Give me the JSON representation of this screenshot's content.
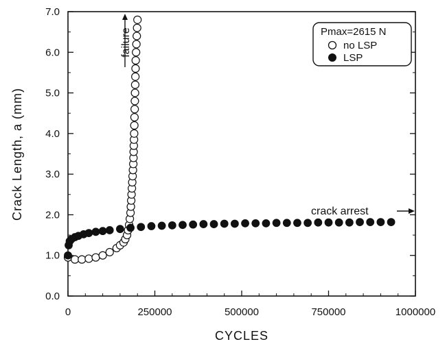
{
  "chart_data": {
    "type": "scatter",
    "xlabel": "CYCLES",
    "ylabel": "Crack Length, a (mm)",
    "xlim": [
      0,
      1000000
    ],
    "ylim": [
      0,
      7
    ],
    "x_ticks": [
      0,
      250000,
      500000,
      750000,
      1000000
    ],
    "x_tick_labels": [
      "0",
      "250000",
      "500000",
      "750000",
      "1000000"
    ],
    "y_ticks": [
      0,
      1,
      2,
      3,
      4,
      5,
      6,
      7
    ],
    "y_tick_labels": [
      "0.0",
      "1.0",
      "2.0",
      "3.0",
      "4.0",
      "5.0",
      "6.0",
      "7.0"
    ],
    "grid": false,
    "legend": {
      "placement": "top-right",
      "title": "Pmax=2615 N",
      "entries": [
        "no LSP",
        "LSP"
      ]
    },
    "annotations": [
      {
        "text": "failure",
        "x": 180000,
        "y": 6.6,
        "arrow": "up"
      },
      {
        "text": "crack arrest",
        "x": 830000,
        "y": 2.05,
        "arrow": "right"
      }
    ],
    "series": [
      {
        "name": "no LSP",
        "marker": "open-circle",
        "x": [
          0,
          20000,
          40000,
          60000,
          80000,
          100000,
          120000,
          140000,
          150000,
          160000,
          165000,
          170000,
          173000,
          176000,
          178000,
          180000,
          181000,
          182000,
          183000,
          184000,
          185000,
          186000,
          187000,
          188000,
          188500,
          189000,
          189500,
          190000,
          190500,
          191000,
          191500,
          192000,
          192500,
          193000,
          193500,
          194000,
          194500,
          195000,
          196000,
          197000,
          198000,
          199000,
          200000
        ],
        "y": [
          0.95,
          0.9,
          0.9,
          0.92,
          0.95,
          1.0,
          1.08,
          1.18,
          1.25,
          1.32,
          1.4,
          1.5,
          1.62,
          1.75,
          1.9,
          2.05,
          2.2,
          2.35,
          2.5,
          2.65,
          2.8,
          2.95,
          3.1,
          3.25,
          3.4,
          3.55,
          3.7,
          3.85,
          4.0,
          4.2,
          4.4,
          4.6,
          4.8,
          5.0,
          5.2,
          5.4,
          5.6,
          5.8,
          6.0,
          6.2,
          6.4,
          6.6,
          6.8
        ]
      },
      {
        "name": "LSP",
        "marker": "filled-circle",
        "x": [
          0,
          2000,
          5000,
          10000,
          20000,
          30000,
          45000,
          60000,
          80000,
          100000,
          120000,
          150000,
          180000,
          210000,
          240000,
          270000,
          300000,
          330000,
          360000,
          390000,
          420000,
          450000,
          480000,
          510000,
          540000,
          570000,
          600000,
          630000,
          660000,
          690000,
          720000,
          750000,
          780000,
          810000,
          840000,
          870000,
          900000,
          930000
        ],
        "y": [
          1.0,
          1.25,
          1.35,
          1.4,
          1.45,
          1.48,
          1.52,
          1.55,
          1.58,
          1.6,
          1.62,
          1.65,
          1.68,
          1.7,
          1.72,
          1.73,
          1.74,
          1.75,
          1.76,
          1.77,
          1.77,
          1.78,
          1.78,
          1.79,
          1.79,
          1.79,
          1.8,
          1.8,
          1.8,
          1.8,
          1.81,
          1.81,
          1.81,
          1.81,
          1.82,
          1.82,
          1.82,
          1.82
        ]
      }
    ]
  }
}
